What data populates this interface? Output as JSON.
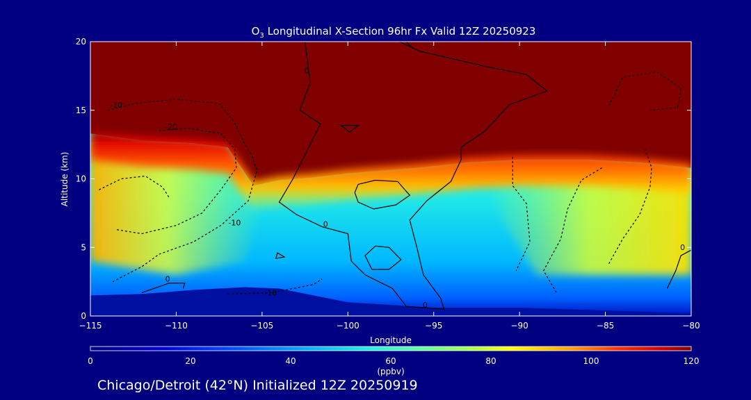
{
  "chart_data": {
    "type": "heatmap",
    "title_main": "O",
    "title_sub": "3",
    "title_rest": " Longitudinal X-Section 96hr  Fx Valid 12Z 20250923",
    "xlabel": "Longitude",
    "ylabel": "Altitude (km)",
    "xlim": [
      -115,
      -80
    ],
    "ylim": [
      0,
      20
    ],
    "x_ticks": [
      -115,
      -110,
      -105,
      -100,
      -95,
      -90,
      -85,
      -80
    ],
    "x_tick_labels": [
      "−115",
      "−110",
      "−105",
      "−100",
      "−95",
      "−90",
      "−85",
      "−80"
    ],
    "y_ticks": [
      0,
      5,
      10,
      15,
      20
    ],
    "y_tick_labels": [
      "0",
      "5",
      "10",
      "15",
      "20"
    ],
    "colorbar": {
      "label": "(ppbv)",
      "min": 0,
      "max": 120,
      "ticks": [
        0,
        20,
        40,
        60,
        80,
        100,
        120
      ],
      "tick_labels": [
        "0",
        "20",
        "40",
        "60",
        "80",
        "100",
        "120"
      ]
    },
    "tropopause_height_km": [
      [
        -115,
        13.3
      ],
      [
        -112,
        12.8
      ],
      [
        -109,
        12.6
      ],
      [
        -107,
        12.3
      ],
      [
        -105.5,
        9.5
      ],
      [
        -104,
        9.9
      ],
      [
        -102,
        10.1
      ],
      [
        -100,
        10.4
      ],
      [
        -96,
        10.8
      ],
      [
        -93,
        11.2
      ],
      [
        -90,
        11.4
      ],
      [
        -86,
        11.4
      ],
      [
        -83,
        11.2
      ],
      [
        -80,
        10.8
      ]
    ],
    "surface_height_km": [
      [
        -115,
        1.5
      ],
      [
        -112,
        1.6
      ],
      [
        -109,
        1.9
      ],
      [
        -106,
        2.1
      ],
      [
        -104,
        2.0
      ],
      [
        -100,
        1.0
      ],
      [
        -95,
        0.6
      ],
      [
        -90,
        0.6
      ],
      [
        -85,
        0.4
      ],
      [
        -80,
        0.2
      ]
    ],
    "contour_labels": [
      {
        "text": "-10",
        "lon": -113.5,
        "alt": 15.2
      },
      {
        "text": "-20",
        "lon": -110.3,
        "alt": 13.6
      },
      {
        "text": "0",
        "lon": -102.4,
        "alt": 17.7
      },
      {
        "text": "-10",
        "lon": -106.6,
        "alt": 6.6
      },
      {
        "text": "0",
        "lon": -101.3,
        "alt": 6.5
      },
      {
        "text": "0",
        "lon": -110.5,
        "alt": 2.5
      },
      {
        "text": "-10",
        "lon": -104.5,
        "alt": 1.5
      },
      {
        "text": "0",
        "lon": -95.5,
        "alt": 0.6
      },
      {
        "text": "0",
        "lon": -80.5,
        "alt": 4.8
      }
    ],
    "footer": "Chicago/Detroit (42°N) Initialized 12Z 20250919"
  }
}
